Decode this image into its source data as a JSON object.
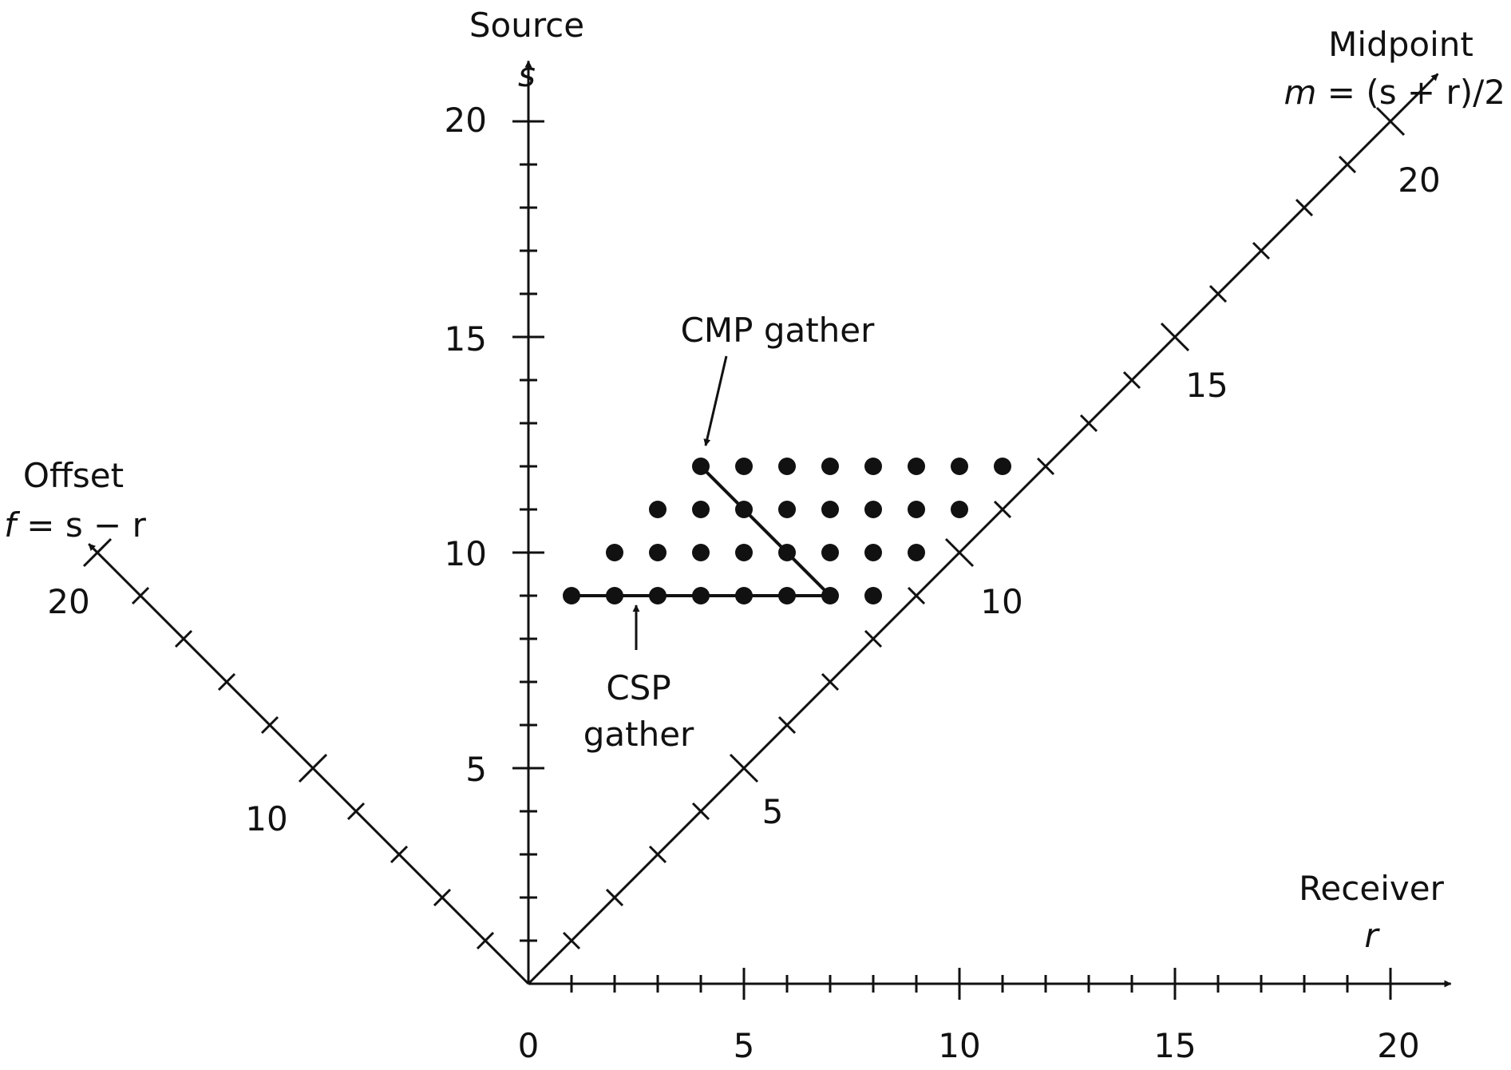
{
  "diagram": {
    "source_axis": {
      "title": "Source",
      "symbol": "s",
      "ticks": [
        "5",
        "10",
        "15",
        "20"
      ]
    },
    "receiver_axis": {
      "title": "Receiver",
      "symbol": "r",
      "ticks": [
        "0",
        "5",
        "10",
        "15",
        "20"
      ]
    },
    "midpoint_axis": {
      "title": "Midpoint",
      "formula_lhs": "m",
      "formula_rhs": " = (s + r)/2",
      "ticks": [
        "5",
        "10",
        "15",
        "20"
      ]
    },
    "offset_axis": {
      "title": "Offset",
      "formula_lhs": "f",
      "formula_rhs": " = s − r",
      "ticks": [
        "10",
        "20"
      ]
    },
    "annotations": {
      "cmp": "CMP gather",
      "csp_line1": "CSP",
      "csp_line2": "gather"
    },
    "colors": {
      "ink": "#111111",
      "background": "#ffffff"
    }
  },
  "chart_data": {
    "type": "scatter",
    "axis_range": [
      0,
      20
    ],
    "points": [
      {
        "r": 1,
        "s": 9
      },
      {
        "r": 2,
        "s": 9
      },
      {
        "r": 3,
        "s": 9
      },
      {
        "r": 4,
        "s": 9
      },
      {
        "r": 5,
        "s": 9
      },
      {
        "r": 6,
        "s": 9
      },
      {
        "r": 7,
        "s": 9
      },
      {
        "r": 8,
        "s": 9
      },
      {
        "r": 2,
        "s": 10
      },
      {
        "r": 3,
        "s": 10
      },
      {
        "r": 4,
        "s": 10
      },
      {
        "r": 5,
        "s": 10
      },
      {
        "r": 6,
        "s": 10
      },
      {
        "r": 7,
        "s": 10
      },
      {
        "r": 8,
        "s": 10
      },
      {
        "r": 9,
        "s": 10
      },
      {
        "r": 3,
        "s": 11
      },
      {
        "r": 4,
        "s": 11
      },
      {
        "r": 5,
        "s": 11
      },
      {
        "r": 6,
        "s": 11
      },
      {
        "r": 7,
        "s": 11
      },
      {
        "r": 8,
        "s": 11
      },
      {
        "r": 9,
        "s": 11
      },
      {
        "r": 10,
        "s": 11
      },
      {
        "r": 4,
        "s": 12
      },
      {
        "r": 5,
        "s": 12
      },
      {
        "r": 6,
        "s": 12
      },
      {
        "r": 7,
        "s": 12
      },
      {
        "r": 8,
        "s": 12
      },
      {
        "r": 9,
        "s": 12
      },
      {
        "r": 10,
        "s": 12
      },
      {
        "r": 11,
        "s": 12
      }
    ],
    "csp_gather": [
      {
        "r": 1,
        "s": 9
      },
      {
        "r": 7,
        "s": 9
      }
    ],
    "cmp_gather": [
      {
        "r": 4,
        "s": 12
      },
      {
        "r": 7,
        "s": 9
      }
    ]
  }
}
